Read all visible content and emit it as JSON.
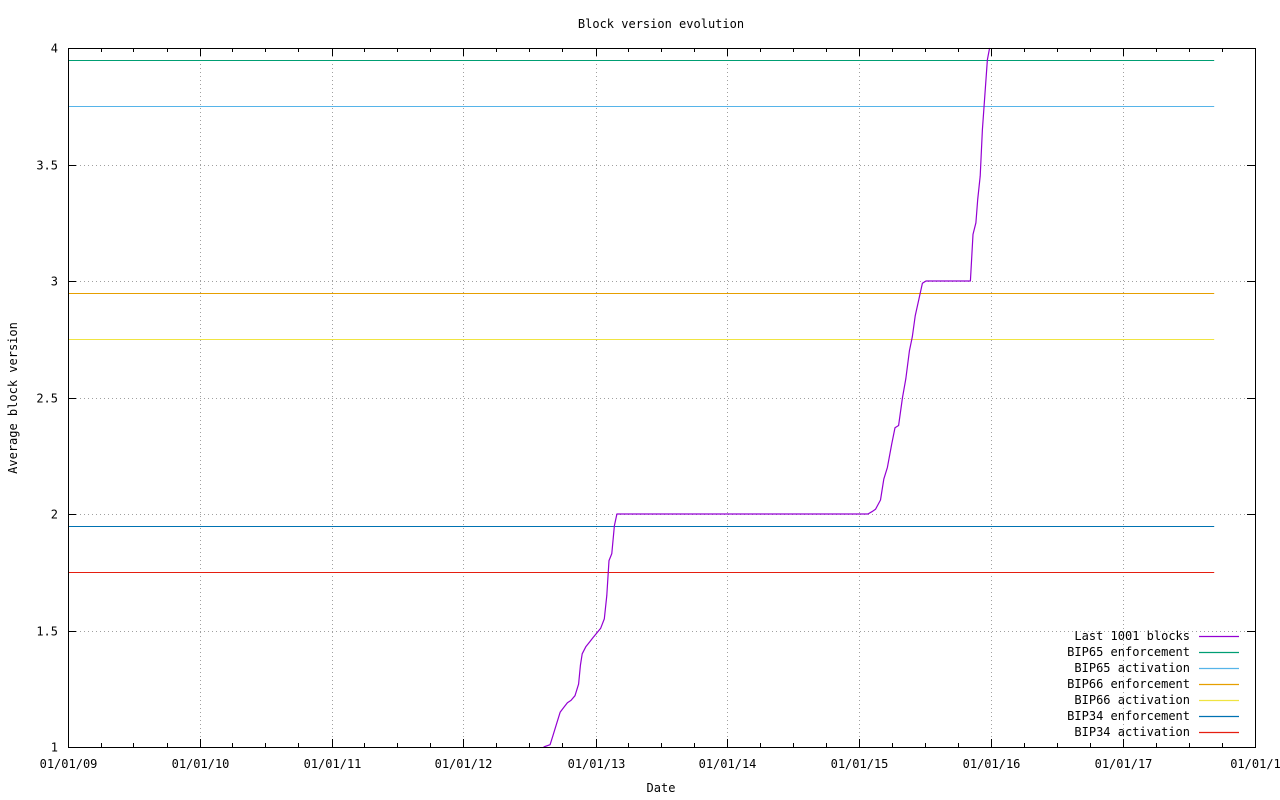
{
  "chart_data": {
    "type": "line",
    "title": "Block version evolution",
    "xlabel": "Date",
    "ylabel": "Average block version",
    "xlim": [
      "2009-01-01",
      "2018-01-01"
    ],
    "ylim": [
      1,
      4
    ],
    "x_ticks": [
      {
        "date": "2009-01-01",
        "label": "01/01/09"
      },
      {
        "date": "2010-01-01",
        "label": "01/01/10"
      },
      {
        "date": "2011-01-01",
        "label": "01/01/11"
      },
      {
        "date": "2012-01-01",
        "label": "01/01/12"
      },
      {
        "date": "2013-01-01",
        "label": "01/01/13"
      },
      {
        "date": "2014-01-01",
        "label": "01/01/14"
      },
      {
        "date": "2015-01-01",
        "label": "01/01/15"
      },
      {
        "date": "2016-01-01",
        "label": "01/01/16"
      },
      {
        "date": "2017-01-01",
        "label": "01/01/17"
      },
      {
        "date": "2018-01-01",
        "label": "01/01/1"
      }
    ],
    "y_ticks": [
      {
        "value": 1,
        "label": "1"
      },
      {
        "value": 1.5,
        "label": "1.5"
      },
      {
        "value": 2,
        "label": "2"
      },
      {
        "value": 2.5,
        "label": "2.5"
      },
      {
        "value": 3,
        "label": "3"
      },
      {
        "value": 3.5,
        "label": "3.5"
      },
      {
        "value": 4,
        "label": "4"
      }
    ],
    "grid": true,
    "legend_position": "bottom-right",
    "threshold_x_range": [
      "2009-01-01",
      "2017-09-10"
    ],
    "series": [
      {
        "name": "Last 1001 blocks",
        "color": "#9400d3",
        "kind": "line",
        "points": [
          [
            "2012-08-10",
            1.0
          ],
          [
            "2012-08-28",
            1.01
          ],
          [
            "2012-09-05",
            1.05
          ],
          [
            "2012-09-15",
            1.1
          ],
          [
            "2012-09-25",
            1.15
          ],
          [
            "2012-10-05",
            1.17
          ],
          [
            "2012-10-15",
            1.19
          ],
          [
            "2012-10-25",
            1.2
          ],
          [
            "2012-11-05",
            1.22
          ],
          [
            "2012-11-15",
            1.27
          ],
          [
            "2012-11-20",
            1.35
          ],
          [
            "2012-11-25",
            1.4
          ],
          [
            "2012-12-05",
            1.43
          ],
          [
            "2012-12-15",
            1.45
          ],
          [
            "2012-12-25",
            1.47
          ],
          [
            "2013-01-05",
            1.49
          ],
          [
            "2013-01-15",
            1.51
          ],
          [
            "2013-01-25",
            1.55
          ],
          [
            "2013-02-01",
            1.65
          ],
          [
            "2013-02-07",
            1.8
          ],
          [
            "2013-02-15",
            1.83
          ],
          [
            "2013-02-22",
            1.95
          ],
          [
            "2013-03-01",
            2.0
          ],
          [
            "2015-01-25",
            2.0
          ],
          [
            "2015-02-05",
            2.01
          ],
          [
            "2015-02-15",
            2.02
          ],
          [
            "2015-03-01",
            2.06
          ],
          [
            "2015-03-10",
            2.15
          ],
          [
            "2015-03-20",
            2.2
          ],
          [
            "2015-04-01",
            2.3
          ],
          [
            "2015-04-10",
            2.37
          ],
          [
            "2015-04-20",
            2.38
          ],
          [
            "2015-05-01",
            2.5
          ],
          [
            "2015-05-10",
            2.58
          ],
          [
            "2015-05-20",
            2.7
          ],
          [
            "2015-05-28",
            2.76
          ],
          [
            "2015-06-05",
            2.85
          ],
          [
            "2015-06-15",
            2.92
          ],
          [
            "2015-06-25",
            2.99
          ],
          [
            "2015-07-05",
            3.0
          ],
          [
            "2015-11-05",
            3.0
          ],
          [
            "2015-11-12",
            3.2
          ],
          [
            "2015-11-20",
            3.25
          ],
          [
            "2015-11-25",
            3.35
          ],
          [
            "2015-12-02",
            3.45
          ],
          [
            "2015-12-08",
            3.65
          ],
          [
            "2015-12-15",
            3.8
          ],
          [
            "2015-12-22",
            3.95
          ],
          [
            "2015-12-28",
            4.0
          ]
        ]
      },
      {
        "name": "BIP65 enforcement",
        "color": "#009e73",
        "kind": "hline",
        "value": 3.95
      },
      {
        "name": "BIP65 activation",
        "color": "#56b4e9",
        "kind": "hline",
        "value": 3.75
      },
      {
        "name": "BIP66 enforcement",
        "color": "#e69f00",
        "kind": "hline",
        "value": 2.95
      },
      {
        "name": "BIP66 activation",
        "color": "#f0e442",
        "kind": "hline",
        "value": 2.75
      },
      {
        "name": "BIP34 enforcement",
        "color": "#0072b2",
        "kind": "hline",
        "value": 1.95
      },
      {
        "name": "BIP34 activation",
        "color": "#e51e10",
        "kind": "hline",
        "value": 1.75
      }
    ]
  }
}
